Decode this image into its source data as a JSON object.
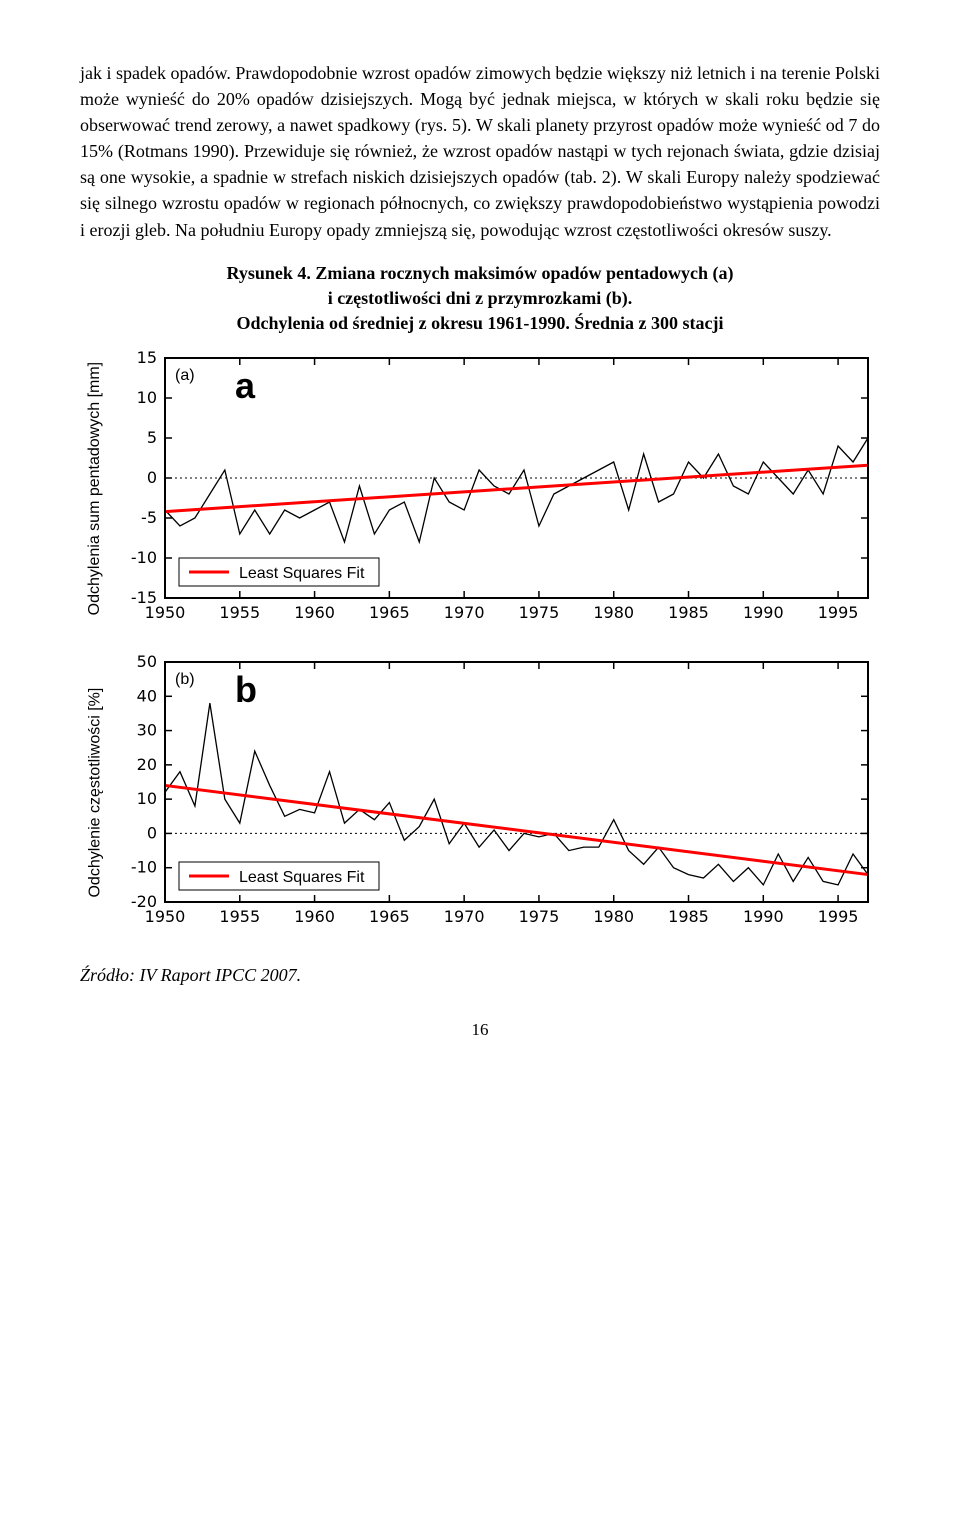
{
  "paragraph": "jak i spadek opadów. Prawdopodobnie wzrost opadów zimowych będzie większy niż letnich i na terenie Polski może wynieść do 20% opadów dzisiejszych. Mogą być jednak miejsca, w których w skali roku będzie się obserwować trend zerowy, a nawet spadkowy (rys. 5). W skali planety przyrost opadów może wynieść od 7 do 15% (Rotmans 1990). Przewiduje się również, że wzrost opadów nastąpi w tych rejonach świata, gdzie dzisiaj są one wysokie, a spadnie w strefach niskich dzisiejszych opadów (tab. 2). W skali Europy należy spodziewać się silnego wzrostu opadów w regionach północnych, co zwiększy prawdopodobieństwo wystąpienia powodzi i erozji gleb. Na południu Europy opady zmniejszą się, powodując wzrost częstotliwości okresów suszy.",
  "caption_line1": "Rysunek 4. Zmiana rocznych maksimów opadów pentadowych (a)",
  "caption_line2": "i częstotliwości dni z przymrozkami (b).",
  "caption_line3": "Odchylenia od średniej z okresu 1961-1990. Średnia z 300 stacji",
  "chart_a": {
    "type": "line",
    "panel_letter": "a",
    "y_label": "Odchylenia sum pentadowych [mm]",
    "x_start": 1950,
    "x_end": 1997,
    "x_ticks": [
      1950,
      1955,
      1960,
      1965,
      1970,
      1975,
      1980,
      1985,
      1990,
      1995
    ],
    "y_min": -15,
    "y_max": 15,
    "y_ticks": [
      -15,
      -10,
      -5,
      0,
      5,
      10,
      15
    ],
    "zero_line_color": "#000000",
    "zero_line_dash": "2,3",
    "series_color": "#000000",
    "series_width": 1.3,
    "trend_color": "#ff0000",
    "trend_width": 3,
    "frame_color": "#000000",
    "frame_width": 2,
    "background": "#ffffff",
    "legend_label": "Least Squares Fit",
    "b_label_text": "(a)",
    "data_y": [
      -4,
      -6,
      -5,
      -2,
      1,
      -7,
      -4,
      -7,
      -4,
      -5,
      -4,
      -3,
      -8,
      -1,
      -7,
      -4,
      -3,
      -8,
      0,
      -3,
      -4,
      1,
      -1,
      -2,
      1,
      -6,
      -2,
      -1,
      0,
      1,
      2,
      -4,
      3,
      -3,
      -2,
      2,
      0,
      3,
      -1,
      -2,
      2,
      0,
      -2,
      1,
      -2,
      4,
      2,
      5
    ],
    "trend_start_y": -4.2,
    "trend_end_y": 1.6,
    "tick_fontsize": 16
  },
  "chart_b": {
    "type": "line",
    "panel_letter": "b",
    "y_label": "Odchylenie częstotliwości [%]",
    "x_start": 1950,
    "x_end": 1997,
    "x_ticks": [
      1950,
      1955,
      1960,
      1965,
      1970,
      1975,
      1980,
      1985,
      1990,
      1995
    ],
    "y_min": -20,
    "y_max": 50,
    "y_ticks": [
      -20,
      -10,
      0,
      10,
      20,
      30,
      40,
      50
    ],
    "zero_line_color": "#000000",
    "zero_line_dash": "2,3",
    "series_color": "#000000",
    "series_width": 1.3,
    "trend_color": "#ff0000",
    "trend_width": 3,
    "frame_color": "#000000",
    "frame_width": 2,
    "background": "#ffffff",
    "legend_label": "Least Squares Fit",
    "b_label_text": "(b)",
    "data_y": [
      12,
      18,
      8,
      38,
      10,
      3,
      24,
      14,
      5,
      7,
      6,
      18,
      3,
      7,
      4,
      9,
      -2,
      2,
      10,
      -3,
      3,
      -4,
      1,
      -5,
      0,
      -1,
      0,
      -5,
      -4,
      -4,
      4,
      -5,
      -9,
      -4,
      -10,
      -12,
      -13,
      -9,
      -14,
      -10,
      -15,
      -6,
      -14,
      -7,
      -14,
      -15,
      -6,
      -12
    ],
    "trend_start_y": 14,
    "trend_end_y": -12,
    "tick_fontsize": 16
  },
  "source": "Źródło: IV Raport IPCC 2007.",
  "page_number": "16"
}
